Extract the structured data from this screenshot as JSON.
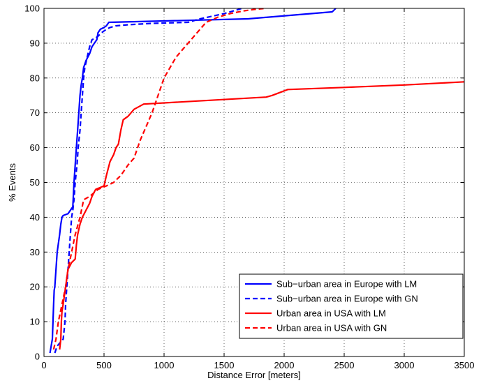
{
  "chart_data": {
    "type": "line",
    "title": "",
    "xlabel": "Distance Error [meters]",
    "ylabel": "% Events",
    "xlim": [
      0,
      3500
    ],
    "ylim": [
      0,
      100
    ],
    "xticks": [
      0,
      500,
      1000,
      1500,
      2000,
      2500,
      3000,
      3500
    ],
    "yticks": [
      0,
      10,
      20,
      30,
      40,
      50,
      60,
      70,
      80,
      90,
      100
    ],
    "grid": true,
    "legend_position": "bottom-right",
    "series": [
      {
        "name": "Sub−urban area in Europe with LM",
        "color": "#0000ff",
        "dash": "solid",
        "x": [
          50,
          60,
          70,
          75,
          80,
          85,
          90,
          100,
          110,
          130,
          140,
          150,
          160,
          200,
          240,
          250,
          260,
          270,
          280,
          290,
          300,
          310,
          320,
          330,
          350,
          380,
          400,
          440,
          450,
          470,
          500,
          520,
          540,
          1700,
          2400,
          2430
        ],
        "y": [
          1,
          3,
          5,
          10,
          15,
          19,
          20,
          25,
          30,
          35,
          38,
          40,
          40.5,
          41,
          43,
          50,
          55,
          60,
          65,
          70,
          75,
          78,
          80,
          83,
          85,
          87,
          89,
          91,
          93,
          94,
          94.5,
          95,
          96,
          97,
          99,
          100
        ]
      },
      {
        "name": "Sub−urban area in Europe with GN",
        "color": "#0000ff",
        "dash": "dashed",
        "x": [
          90,
          110,
          160,
          175,
          180,
          190,
          200,
          210,
          220,
          230,
          240,
          250,
          260,
          275,
          285,
          300,
          310,
          320,
          330,
          340,
          360,
          380,
          400,
          430,
          450,
          480,
          520,
          550,
          600,
          700,
          900,
          1200,
          1300,
          1500,
          1650
        ],
        "y": [
          1,
          3,
          5,
          10,
          15,
          20,
          25,
          30,
          35,
          40,
          42,
          45,
          50,
          55,
          60,
          65,
          70,
          75,
          80,
          83,
          86,
          89,
          91,
          91.5,
          92,
          93,
          94,
          94.5,
          95,
          95.3,
          95.7,
          96,
          97,
          98.5,
          100
        ]
      },
      {
        "name": "Urban area in USA with LM",
        "color": "#ff0000",
        "dash": "solid",
        "x": [
          130,
          140,
          145,
          150,
          160,
          180,
          200,
          230,
          260,
          270,
          280,
          300,
          320,
          350,
          380,
          400,
          430,
          500,
          520,
          550,
          580,
          600,
          620,
          640,
          660,
          700,
          750,
          830,
          1850,
          1900,
          2030,
          2500,
          3000,
          3500
        ],
        "y": [
          2,
          5,
          10,
          13,
          15,
          20,
          25,
          27,
          28,
          32,
          35,
          38,
          40,
          42,
          44,
          46,
          48,
          49,
          52,
          56,
          58,
          60,
          61,
          65,
          68,
          69,
          71,
          72.5,
          74.5,
          75,
          76.7,
          77.3,
          78,
          78.9
        ]
      },
      {
        "name": "Urban area in USA with GN",
        "color": "#ff0000",
        "dash": "dashed",
        "x": [
          80,
          100,
          120,
          150,
          180,
          200,
          230,
          260,
          300,
          330,
          380,
          450,
          520,
          580,
          640,
          700,
          750,
          800,
          850,
          900,
          950,
          1000,
          1050,
          1100,
          1150,
          1200,
          1250,
          1300,
          1350,
          1450,
          1550,
          1650,
          1750,
          1850
        ],
        "y": [
          2,
          5,
          10,
          15,
          20,
          25,
          30,
          35,
          40,
          45,
          46,
          48,
          49,
          50,
          52,
          55,
          57,
          62,
          66,
          70,
          75,
          80,
          83,
          86,
          88,
          90,
          92,
          94,
          96,
          97.5,
          98.5,
          99.2,
          99.7,
          100
        ]
      }
    ]
  }
}
